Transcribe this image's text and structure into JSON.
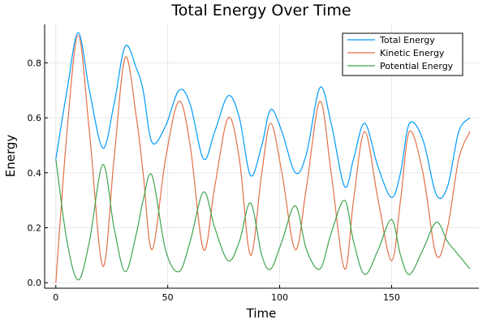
{
  "chart_data": {
    "type": "line",
    "title": "Total Energy Over Time",
    "xlabel": "Time",
    "ylabel": "Energy",
    "xlim": [
      -5,
      189
    ],
    "ylim": [
      -0.02,
      0.94
    ],
    "xticks": [
      0,
      50,
      100,
      150
    ],
    "xtick_labels": [
      "0",
      "50",
      "100",
      "150"
    ],
    "yticks": [
      0.0,
      0.2,
      0.4,
      0.6,
      0.8
    ],
    "ytick_labels": [
      "0.0",
      "0.2",
      "0.4",
      "0.6",
      "0.8"
    ],
    "grid": true,
    "legend_position": "top-right",
    "x": [
      0,
      5,
      10,
      15,
      21,
      26,
      31,
      36,
      39,
      43,
      49,
      55,
      60,
      66,
      71,
      77,
      82,
      87,
      92,
      96,
      101,
      107,
      112,
      118,
      123,
      129,
      133,
      138,
      144,
      150,
      154,
      158,
      164,
      170,
      175,
      180,
      185
    ],
    "series": [
      {
        "name": "Total Energy",
        "color": "#009AFA",
        "values": [
          0.45,
          0.7,
          0.91,
          0.7,
          0.49,
          0.65,
          0.86,
          0.78,
          0.7,
          0.51,
          0.57,
          0.7,
          0.65,
          0.45,
          0.55,
          0.68,
          0.6,
          0.39,
          0.5,
          0.63,
          0.55,
          0.4,
          0.47,
          0.71,
          0.58,
          0.35,
          0.45,
          0.58,
          0.42,
          0.31,
          0.4,
          0.58,
          0.52,
          0.32,
          0.35,
          0.55,
          0.6
        ]
      },
      {
        "name": "Kinetic Energy",
        "color": "#E26F46",
        "values": [
          0.0,
          0.55,
          0.9,
          0.55,
          0.06,
          0.45,
          0.82,
          0.6,
          0.4,
          0.12,
          0.45,
          0.66,
          0.5,
          0.12,
          0.35,
          0.6,
          0.45,
          0.1,
          0.4,
          0.58,
          0.4,
          0.12,
          0.35,
          0.66,
          0.4,
          0.05,
          0.3,
          0.55,
          0.3,
          0.08,
          0.3,
          0.55,
          0.4,
          0.1,
          0.2,
          0.45,
          0.55
        ]
      },
      {
        "name": "Potential Energy",
        "color": "#3EA44E",
        "values": [
          0.45,
          0.15,
          0.01,
          0.15,
          0.43,
          0.2,
          0.04,
          0.18,
          0.3,
          0.39,
          0.12,
          0.04,
          0.15,
          0.33,
          0.2,
          0.08,
          0.15,
          0.29,
          0.1,
          0.05,
          0.15,
          0.28,
          0.12,
          0.05,
          0.18,
          0.3,
          0.15,
          0.03,
          0.12,
          0.23,
          0.1,
          0.03,
          0.12,
          0.22,
          0.15,
          0.1,
          0.05
        ]
      }
    ]
  }
}
